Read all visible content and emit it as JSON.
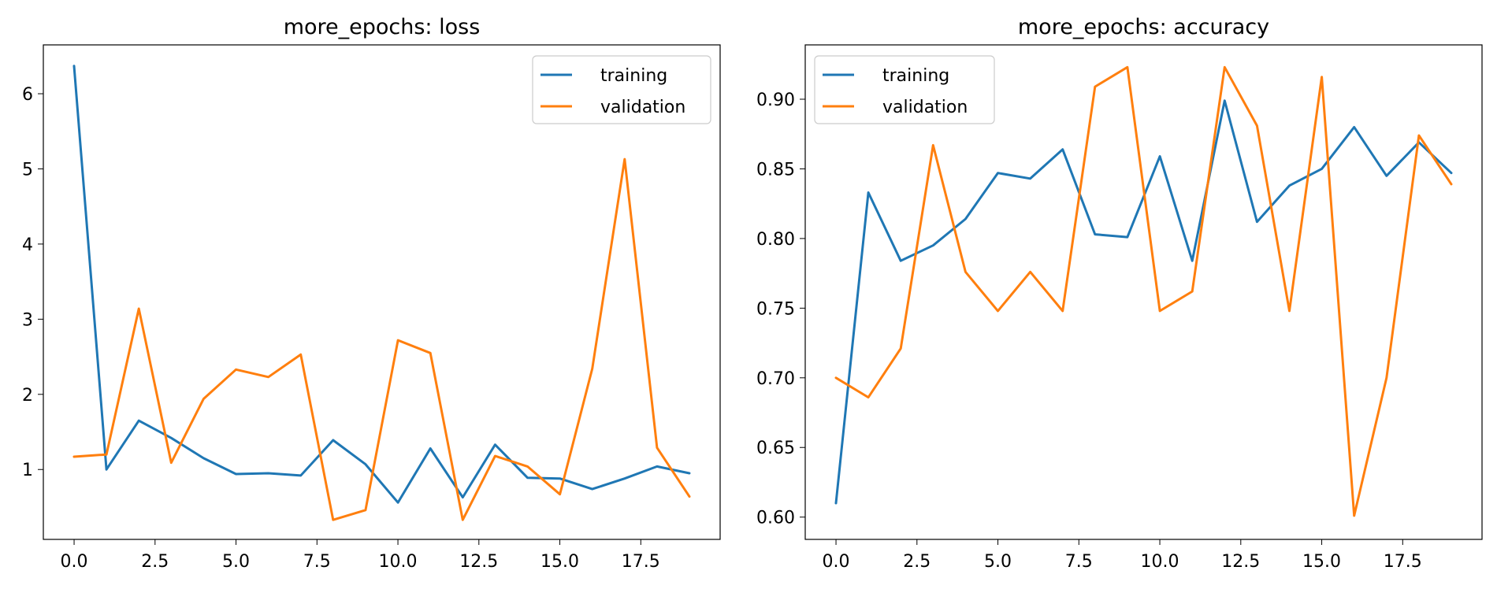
{
  "chart_data": [
    {
      "type": "line",
      "title": "more_epochs: loss",
      "xlabel": "",
      "ylabel": "",
      "xlim": [
        -0.95,
        19.95
      ],
      "ylim": [
        0.07,
        6.65
      ],
      "xticks": [
        0.0,
        2.5,
        5.0,
        7.5,
        10.0,
        12.5,
        15.0,
        17.5
      ],
      "xtick_labels": [
        "0.0",
        "2.5",
        "5.0",
        "7.5",
        "10.0",
        "12.5",
        "15.0",
        "17.5"
      ],
      "yticks": [
        1,
        2,
        3,
        4,
        5,
        6
      ],
      "ytick_labels": [
        "1",
        "2",
        "3",
        "4",
        "5",
        "6"
      ],
      "grid": false,
      "legend_position": "top-right",
      "x": [
        0,
        1,
        2,
        3,
        4,
        5,
        6,
        7,
        8,
        9,
        10,
        11,
        12,
        13,
        14,
        15,
        16,
        17,
        18,
        19
      ],
      "series": [
        {
          "name": "training",
          "color": "#1f77b4",
          "values": [
            6.37,
            1.0,
            1.65,
            1.42,
            1.15,
            0.94,
            0.95,
            0.92,
            1.39,
            1.07,
            0.56,
            1.28,
            0.63,
            1.33,
            0.89,
            0.88,
            0.74,
            0.88,
            1.04,
            0.95
          ]
        },
        {
          "name": "validation",
          "color": "#ff7f0e",
          "values": [
            1.17,
            1.2,
            3.14,
            1.09,
            1.94,
            2.33,
            2.23,
            2.53,
            0.33,
            0.46,
            2.72,
            2.55,
            0.33,
            1.18,
            1.04,
            0.67,
            2.34,
            5.13,
            1.29,
            0.64
          ]
        }
      ]
    },
    {
      "type": "line",
      "title": "more_epochs: accuracy",
      "xlabel": "",
      "ylabel": "",
      "xlim": [
        -0.95,
        19.95
      ],
      "ylim": [
        0.584,
        0.939
      ],
      "xticks": [
        0.0,
        2.5,
        5.0,
        7.5,
        10.0,
        12.5,
        15.0,
        17.5
      ],
      "xtick_labels": [
        "0.0",
        "2.5",
        "5.0",
        "7.5",
        "10.0",
        "12.5",
        "15.0",
        "17.5"
      ],
      "yticks": [
        0.6,
        0.65,
        0.7,
        0.75,
        0.8,
        0.85,
        0.9
      ],
      "ytick_labels": [
        "0.60",
        "0.65",
        "0.70",
        "0.75",
        "0.80",
        "0.85",
        "0.90"
      ],
      "grid": false,
      "legend_position": "top-left",
      "x": [
        0,
        1,
        2,
        3,
        4,
        5,
        6,
        7,
        8,
        9,
        10,
        11,
        12,
        13,
        14,
        15,
        16,
        17,
        18,
        19
      ],
      "series": [
        {
          "name": "training",
          "color": "#1f77b4",
          "values": [
            0.61,
            0.833,
            0.784,
            0.795,
            0.814,
            0.847,
            0.843,
            0.864,
            0.803,
            0.801,
            0.859,
            0.784,
            0.899,
            0.812,
            0.838,
            0.85,
            0.88,
            0.845,
            0.869,
            0.847
          ]
        },
        {
          "name": "validation",
          "color": "#ff7f0e",
          "values": [
            0.7,
            0.686,
            0.721,
            0.867,
            0.776,
            0.748,
            0.776,
            0.748,
            0.909,
            0.923,
            0.748,
            0.762,
            0.923,
            0.881,
            0.748,
            0.916,
            0.601,
            0.7,
            0.874,
            0.839
          ]
        }
      ]
    }
  ]
}
